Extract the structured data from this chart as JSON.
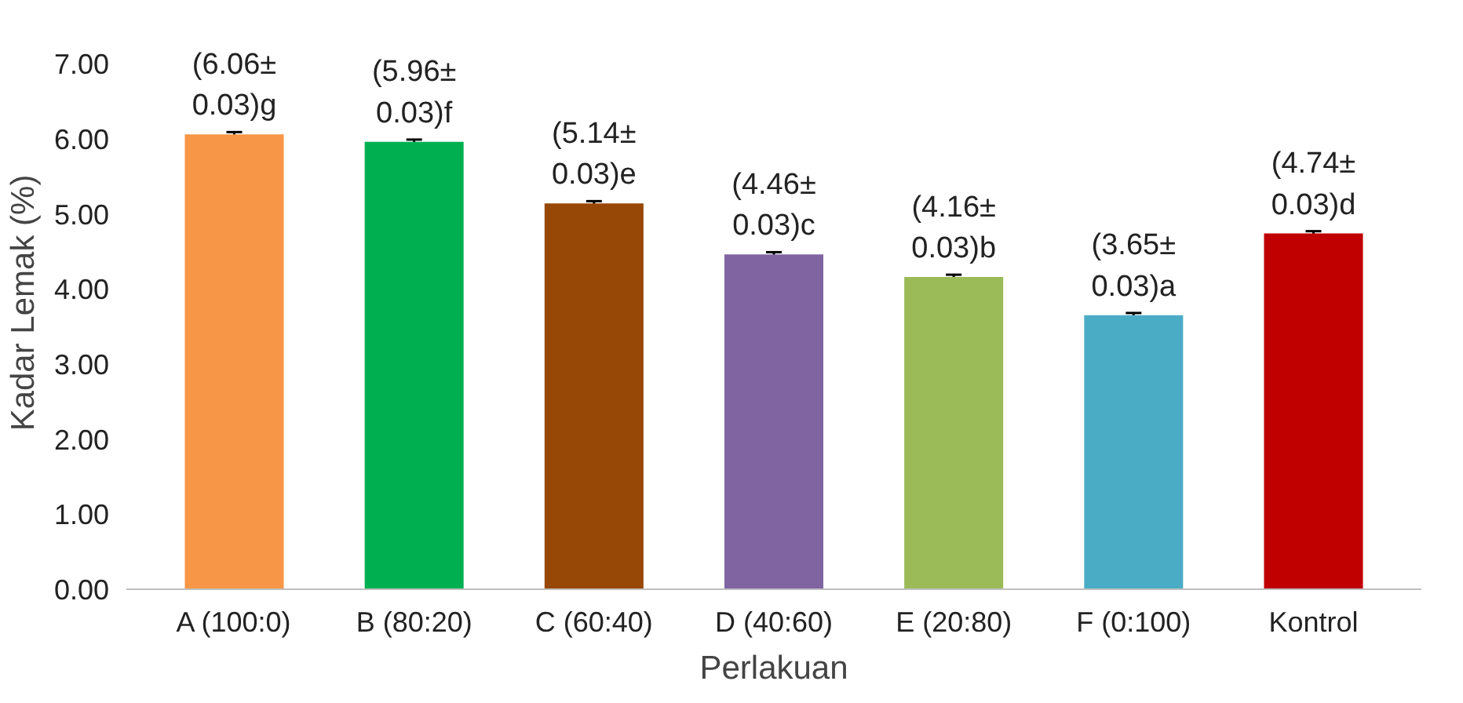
{
  "chart_data": {
    "type": "bar",
    "xlabel": "Perlakuan",
    "ylabel": "Kadar Lemak (%)",
    "categories": [
      "A (100:0)",
      "B (80:20)",
      "C (60:40)",
      "D (40:60)",
      "E (20:80)",
      "F (0:100)",
      "Kontrol"
    ],
    "values": [
      6.06,
      5.96,
      5.14,
      4.46,
      4.16,
      3.65,
      4.74
    ],
    "errors": [
      0.03,
      0.03,
      0.03,
      0.03,
      0.03,
      0.03,
      0.03
    ],
    "colors": [
      "#f79646",
      "#00b050",
      "#974706",
      "#8064a2",
      "#9bbb59",
      "#4bacc6",
      "#c00000"
    ],
    "value_labels": [
      "(6.06±\n0.03)g",
      "(5.96±\n0.03)f",
      "(5.14±\n0.03)e",
      "(4.46±\n0.03)c",
      "(4.16±\n0.03)b",
      "(3.65±\n0.03)a",
      "(4.74±\n0.03)d"
    ],
    "ylim": [
      0,
      7
    ],
    "yticks": [
      {
        "value": 0,
        "label": "0.00"
      },
      {
        "value": 1,
        "label": "1.00"
      },
      {
        "value": 2,
        "label": "2.00"
      },
      {
        "value": 3,
        "label": "3.00"
      },
      {
        "value": 4,
        "label": "4.00"
      },
      {
        "value": 5,
        "label": "5.00"
      },
      {
        "value": 6,
        "label": "6.00"
      },
      {
        "value": 7,
        "label": "7.00"
      }
    ],
    "grid": false
  }
}
